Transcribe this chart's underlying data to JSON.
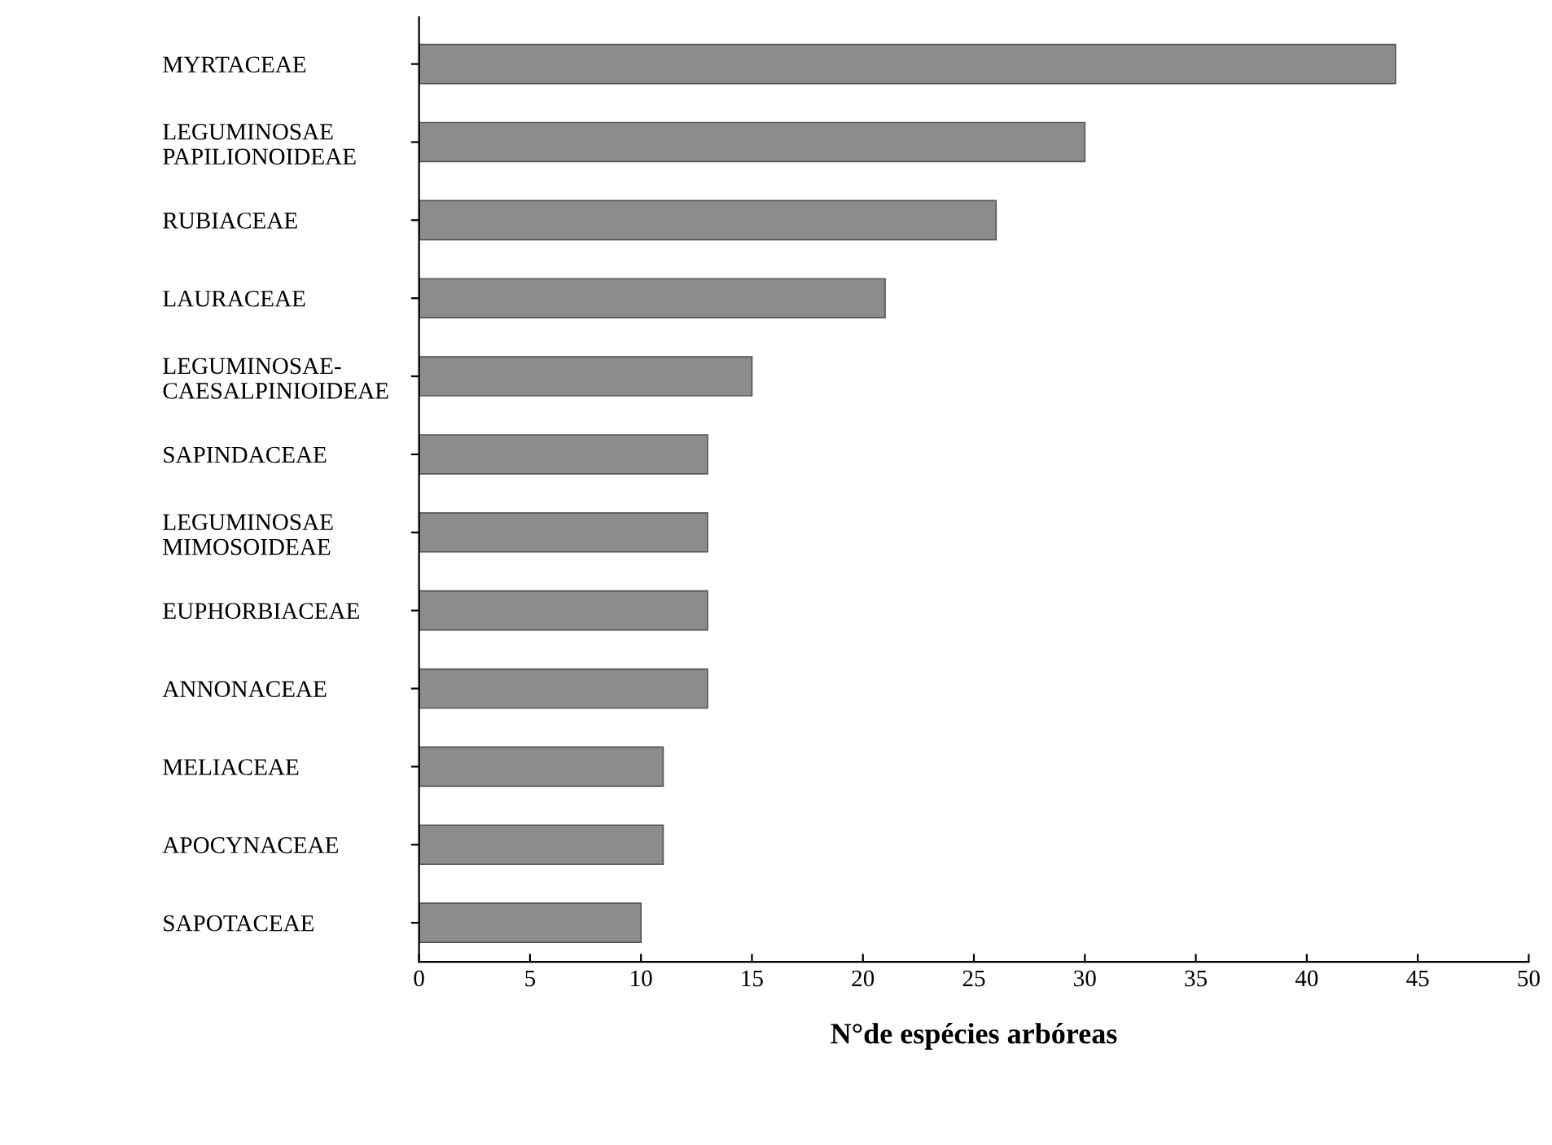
{
  "chart_data": {
    "type": "bar",
    "orientation": "horizontal",
    "xlabel": "N°de espécies arbóreas",
    "categories": [
      "MYRTACEAE",
      "LEGUMINOSAE\nPAPILIONOIDEAE",
      "RUBIACEAE",
      "LAURACEAE",
      "LEGUMINOSAE-\nCAESALPINIOIDEAE",
      "SAPINDACEAE",
      "LEGUMINOSAE\nMIMOSOIDEAE",
      "EUPHORBIACEAE",
      "ANNONACEAE",
      "MELIACEAE",
      "APOCYNACEAE",
      "SAPOTACEAE"
    ],
    "values": [
      44,
      30,
      26,
      21,
      15,
      13,
      13,
      13,
      13,
      11,
      11,
      10
    ],
    "color": "#8c8c8c",
    "xlim": [
      0,
      50
    ],
    "xticks": [
      0,
      5,
      10,
      15,
      20,
      25,
      30,
      35,
      40,
      45,
      50
    ],
    "grid": false,
    "legend": false
  }
}
